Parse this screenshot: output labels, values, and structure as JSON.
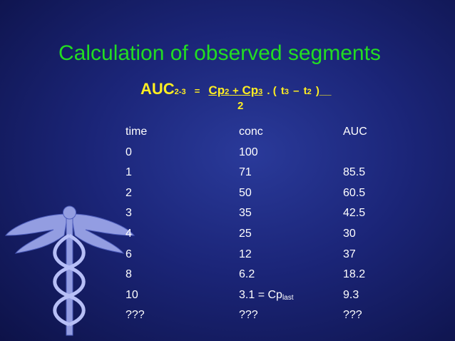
{
  "title": "Calculation of observed segments",
  "formula": {
    "parts": [
      "AUC",
      "2-3",
      "=",
      "Cp",
      "2",
      "+",
      "Cp",
      "3",
      ". (",
      "t",
      "3",
      "–",
      "t",
      "2",
      ")__",
      "2"
    ]
  },
  "table": {
    "header": [
      "time",
      "conc",
      "AUC"
    ],
    "rows": [
      [
        "0",
        "100"
      ],
      [
        "1",
        "71",
        "85.5"
      ],
      [
        "2",
        "50",
        "60.5"
      ],
      [
        "3",
        "35",
        "42.5"
      ],
      [
        "4",
        "25",
        "30"
      ],
      [
        "6",
        "12",
        "37"
      ],
      [
        "8",
        "6.2",
        "18.2"
      ],
      [
        "10",
        {
          "text": "3.1 = Cp",
          "sub": "last"
        },
        "9.3"
      ],
      [
        "???",
        "???",
        "???"
      ]
    ]
  }
}
